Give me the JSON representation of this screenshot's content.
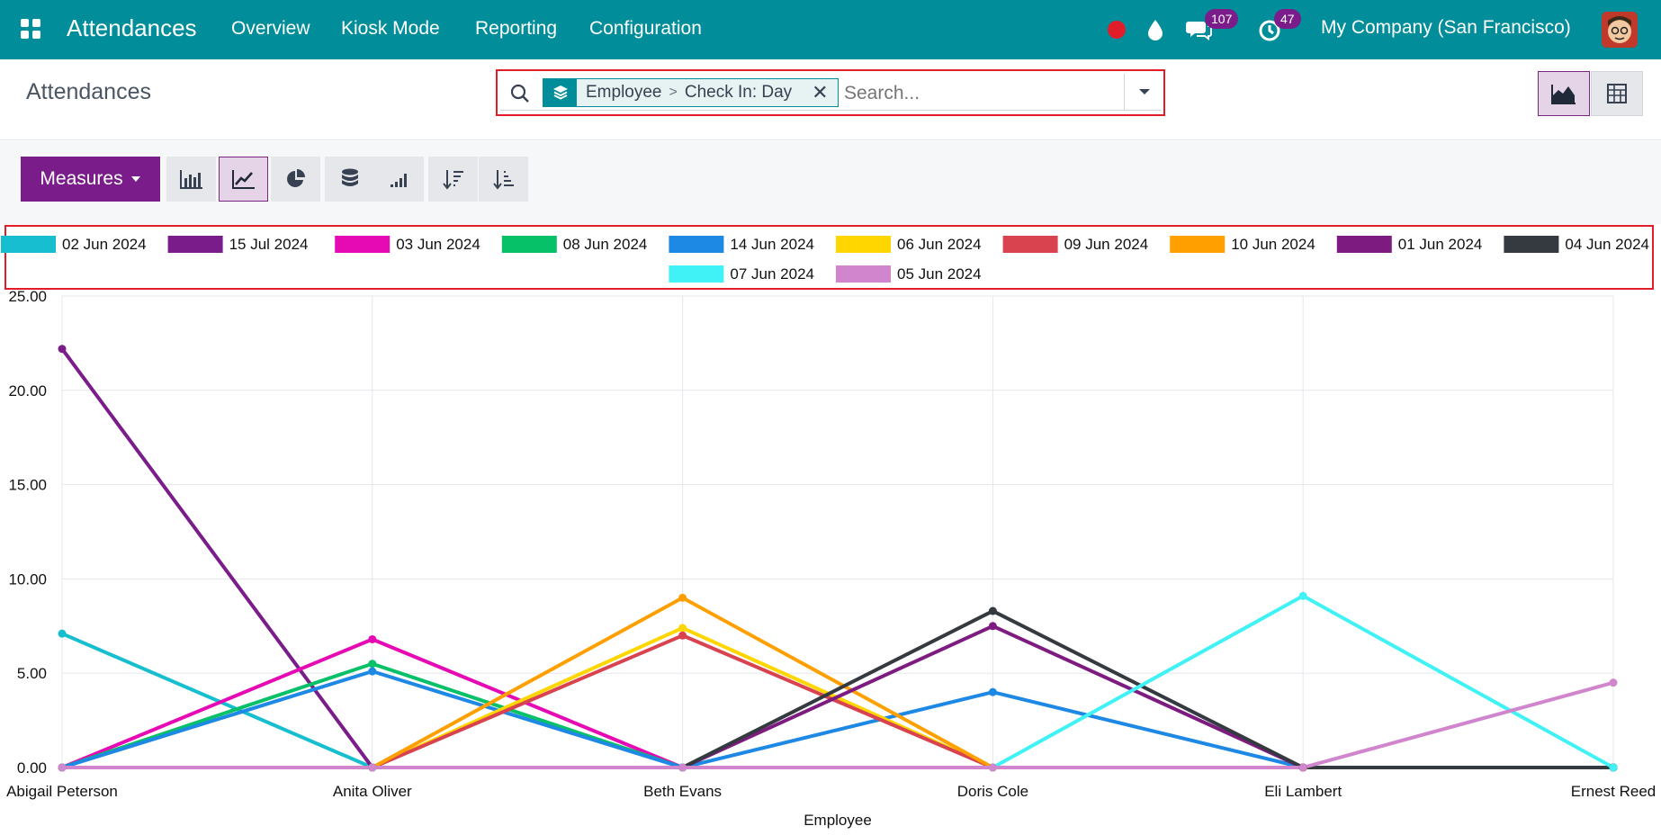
{
  "navbar": {
    "app_title": "Attendances",
    "menu": [
      "Overview",
      "Kiosk Mode",
      "Reporting",
      "Configuration"
    ],
    "messages_count": "107",
    "activities_count": "47",
    "company": "My Company (San Francisco)",
    "icons": [
      "apps-grid-icon",
      "record-dot-icon",
      "water-drop-icon",
      "chat-bubbles-icon",
      "clock-activity-icon"
    ],
    "brand_color": "#018d99"
  },
  "control_panel": {
    "title": "Attendances",
    "facet": {
      "group": "Employee",
      "separator": ">",
      "sub": "Check In: Day"
    },
    "search_placeholder": "Search...",
    "views": [
      "graph",
      "pivot"
    ],
    "active_view": "graph"
  },
  "toolbar": {
    "measures_label": "Measures",
    "chart_types": [
      "bar",
      "line",
      "pie"
    ],
    "active_chart_type": "line",
    "extra_buttons": [
      "stacked",
      "cumulative",
      "sort-descending",
      "sort-ascending"
    ]
  },
  "chart_data": {
    "type": "line",
    "title": "",
    "xlabel": "Employee",
    "ylabel": "",
    "ylim": [
      0,
      25
    ],
    "y_ticks": [
      "0.00",
      "5.00",
      "10.00",
      "15.00",
      "20.00",
      "25.00"
    ],
    "grid": true,
    "legend_position": "top",
    "categories": [
      "Abigail Peterson",
      "Anita Oliver",
      "Beth Evans",
      "Doris Cole",
      "Eli Lambert",
      "Ernest Reed"
    ],
    "series": [
      {
        "name": "02 Jun 2024",
        "color": "#17becf",
        "values": [
          7.1,
          0,
          0,
          0,
          0,
          0
        ]
      },
      {
        "name": "15 Jul 2024",
        "color": "#7a1d8a",
        "values": [
          22.2,
          0,
          0,
          0,
          0,
          0
        ]
      },
      {
        "name": "03 Jun 2024",
        "color": "#e60ab5",
        "values": [
          0,
          6.8,
          0,
          0,
          0,
          0
        ]
      },
      {
        "name": "08 Jun 2024",
        "color": "#06c167",
        "values": [
          0,
          5.5,
          0,
          0,
          0,
          0
        ]
      },
      {
        "name": "14 Jun 2024",
        "color": "#1e88e5",
        "values": [
          0,
          5.1,
          0,
          4.0,
          0,
          0
        ]
      },
      {
        "name": "06 Jun 2024",
        "color": "#ffd600",
        "values": [
          0,
          0,
          7.4,
          0,
          0,
          0
        ]
      },
      {
        "name": "09 Jun 2024",
        "color": "#d9434f",
        "values": [
          0,
          0,
          7.0,
          0,
          0,
          0
        ]
      },
      {
        "name": "10 Jun 2024",
        "color": "#ffa000",
        "values": [
          0,
          0,
          9.0,
          0,
          0,
          0
        ]
      },
      {
        "name": "01 Jun 2024",
        "color": "#7e1b80",
        "values": [
          0,
          0,
          0,
          7.5,
          0,
          0
        ]
      },
      {
        "name": "04 Jun 2024",
        "color": "#343a40",
        "values": [
          0,
          0,
          0,
          8.3,
          0,
          0
        ]
      },
      {
        "name": "07 Jun 2024",
        "color": "#40f2f6",
        "values": [
          0,
          0,
          0,
          0,
          9.1,
          0
        ]
      },
      {
        "name": "05 Jun 2024",
        "color": "#d085cc",
        "values": [
          0,
          0,
          0,
          0,
          0,
          4.5
        ]
      }
    ]
  }
}
